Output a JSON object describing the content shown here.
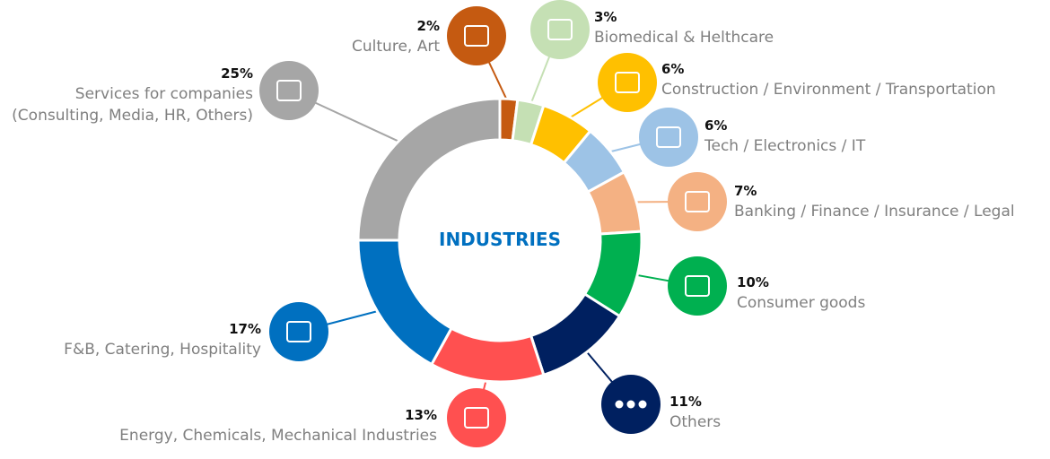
{
  "chart_data": {
    "type": "donut",
    "center_label": "INDUSTRIES",
    "categories": [
      "Culture, Art",
      "Biomedical & Helthcare",
      "Construction / Environment / Transportation",
      "Tech / Electronics / IT",
      "Banking / Finance / Insurance / Legal",
      "Consumer goods",
      "Others",
      "Energy, Chemicals, Mechanical Industries",
      "F&B, Catering, Hospitality",
      "Services for companies\n(Consulting, Media, HR, Others)"
    ],
    "values": [
      2,
      3,
      6,
      6,
      7,
      10,
      11,
      13,
      17,
      25
    ],
    "value_labels": [
      "2%",
      "3%",
      "6%",
      "6%",
      "7%",
      "10%",
      "11%",
      "13%",
      "17%",
      "25%"
    ],
    "colors": [
      "#c55a11",
      "#c5e0b4",
      "#ffc000",
      "#9dc3e6",
      "#f4b183",
      "#00b050",
      "#002060",
      "#ff5050",
      "#0070c0",
      "#a6a6a6"
    ]
  }
}
